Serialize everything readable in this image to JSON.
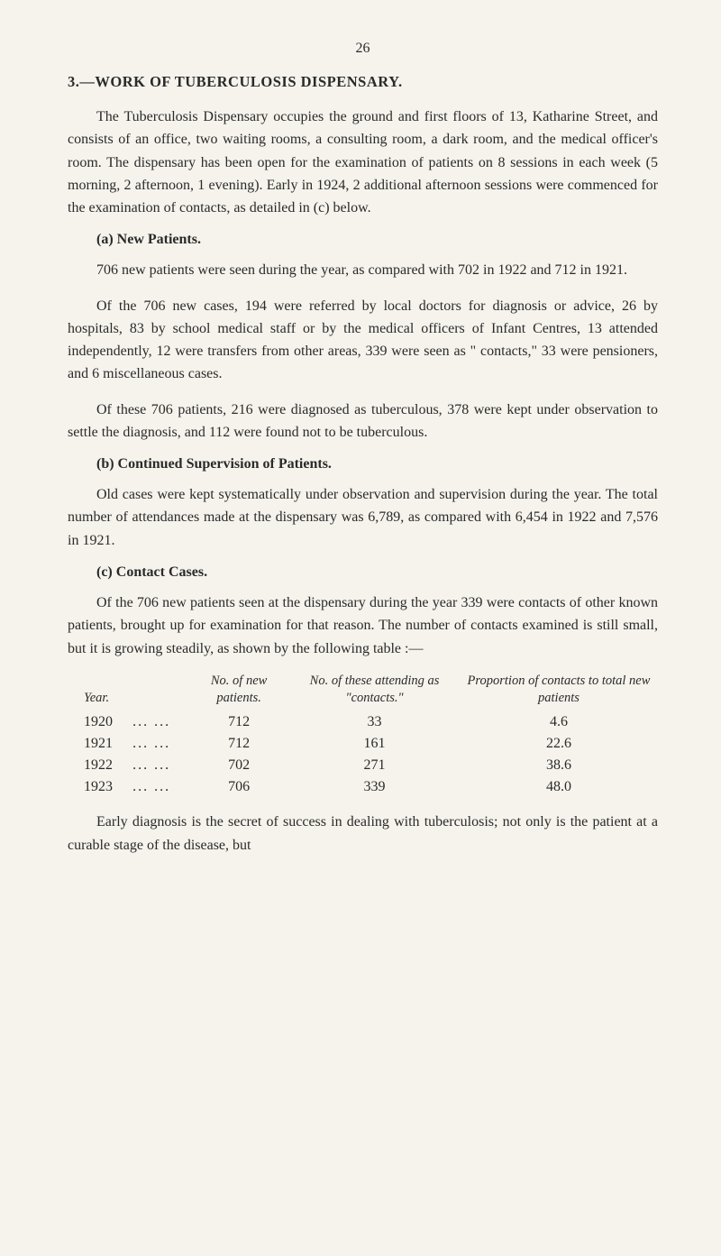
{
  "pageNumber": "26",
  "sectionHeading": "3.—WORK OF TUBERCULOSIS DISPENSARY.",
  "paragraphs": {
    "intro": "The Tuberculosis Dispensary occupies the ground and first floors of 13, Katharine Street, and consists of an office, two waiting rooms, a consulting room, a dark room, and the medical officer's room. The dispensary has been open for the examination of patients on 8 sessions in each week (5 morning, 2 afternoon, 1 evening). Early in 1924, 2 additional afternoon sessions were commenced for the examination of contacts, as detailed in (c) below.",
    "a_heading": "(a)  New Patients.",
    "a_p1": "706 new patients were seen during the year, as compared with 702 in 1922 and 712 in 1921.",
    "a_p2": "Of the 706 new cases, 194 were referred by local doctors for diagnosis or advice, 26 by hospitals, 83 by school medical staff or by the medical officers of Infant Centres, 13 attended independently, 12 were transfers from other areas, 339 were seen as \" contacts,\" 33 were pensioners, and 6 miscellaneous cases.",
    "a_p3": "Of these 706 patients, 216 were diagnosed as tuberculous, 378 were kept under observation to settle the diagnosis, and 112 were found not to be tuberculous.",
    "b_heading": "(b)  Continued Supervision of Patients.",
    "b_p1": "Old cases were kept systematically under observation and supervision during the year. The total number of attendances made at the dispensary was 6,789, as compared with 6,454 in 1922 and 7,576 in 1921.",
    "c_heading": "(c)  Contact Cases.",
    "c_p1": "Of the 706 new patients seen at the dispensary during the year 339 were contacts of other known patients, brought up for examination for that reason. The number of contacts examined is still small, but it is growing steadily, as shown by the following table :—",
    "closing": "Early diagnosis is the secret of success in dealing with tuberculosis; not only is the patient at a curable stage of the disease, but"
  },
  "table": {
    "headers": {
      "year": "Year.",
      "patients": "No. of new patients.",
      "attending": "No. of these attending as \"contacts.\"",
      "proportion": "Proportion of contacts to total new patients"
    },
    "rows": [
      {
        "year": "1920",
        "dots": "...     ...",
        "patients": "712",
        "attending": "33",
        "proportion": "4.6"
      },
      {
        "year": "1921",
        "dots": "...     ...",
        "patients": "712",
        "attending": "161",
        "proportion": "22.6"
      },
      {
        "year": "1922",
        "dots": "...     ...",
        "patients": "702",
        "attending": "271",
        "proportion": "38.6"
      },
      {
        "year": "1923",
        "dots": "...     ...",
        "patients": "706",
        "attending": "339",
        "proportion": "48.0"
      }
    ]
  },
  "styling": {
    "background": "#f5f3ec",
    "textColor": "#2a2a2a",
    "bodyFontSize": 16,
    "headingFontSize": 16.5,
    "tableHeaderFontSize": 14.5,
    "lineHeight": 1.58,
    "textIndent": 32,
    "pageWidth": 800,
    "pageHeight": 1393
  }
}
